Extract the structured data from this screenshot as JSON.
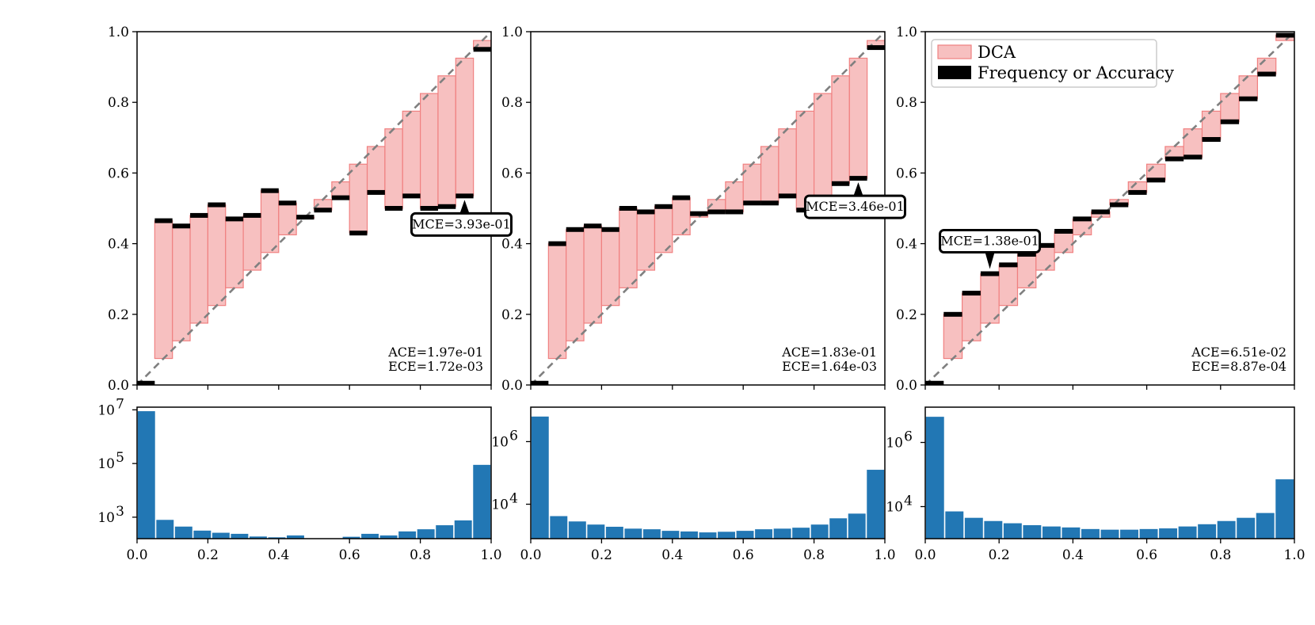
{
  "colors": {
    "gap_fill": "#f7c0c0",
    "gap_edge": "#f08080",
    "accuracy": "#000000",
    "hist": "#2277b4",
    "diagonal": "#808080"
  },
  "legend": {
    "dca_label": "DCA",
    "acc_label": "Frequency or Accuracy",
    "placement": "upper-left of third panel"
  },
  "chart_data": [
    {
      "type": "bar",
      "title": "",
      "xlabel": "",
      "ylabel": "",
      "xlim": [
        0,
        1
      ],
      "ylim": [
        0,
        1
      ],
      "x_ticks": [
        "0.0",
        "0.2",
        "0.4",
        "0.6",
        "0.8",
        "1.0"
      ],
      "y_ticks": [
        "0.0",
        "0.2",
        "0.4",
        "0.6",
        "0.8",
        "1.0"
      ],
      "bin_width": 0.05,
      "confidence": [
        0.0,
        0.075,
        0.125,
        0.175,
        0.225,
        0.275,
        0.325,
        0.375,
        0.425,
        0.475,
        0.525,
        0.575,
        0.625,
        0.675,
        0.725,
        0.775,
        0.825,
        0.875,
        0.925,
        0.975
      ],
      "accuracy": [
        0.005,
        0.465,
        0.45,
        0.48,
        0.51,
        0.47,
        0.48,
        0.55,
        0.515,
        0.475,
        0.495,
        0.53,
        0.43,
        0.545,
        0.5,
        0.535,
        0.5,
        0.505,
        0.535,
        0.95
      ],
      "metrics": {
        "ace": "ACE=1.97e-01",
        "ece": "ECE=1.72e-03"
      },
      "mce": {
        "label": "MCE=3.93e-01",
        "bin": 18
      },
      "hist": {
        "yscale": "log",
        "yticks": [
          3,
          5,
          7
        ],
        "counts_log10": [
          6.95,
          2.9,
          2.65,
          2.5,
          2.42,
          2.38,
          2.28,
          2.25,
          2.32,
          2.15,
          2.12,
          2.27,
          2.38,
          2.32,
          2.47,
          2.55,
          2.7,
          2.88,
          4.95
        ]
      }
    },
    {
      "type": "bar",
      "title": "",
      "xlabel": "",
      "ylabel": "",
      "xlim": [
        0,
        1
      ],
      "ylim": [
        0,
        1
      ],
      "x_ticks": [
        "0.0",
        "0.2",
        "0.4",
        "0.6",
        "0.8",
        "1.0"
      ],
      "y_ticks": [
        "0.0",
        "0.2",
        "0.4",
        "0.6",
        "0.8",
        "1.0"
      ],
      "bin_width": 0.05,
      "confidence": [
        0.0,
        0.075,
        0.125,
        0.175,
        0.225,
        0.275,
        0.325,
        0.375,
        0.425,
        0.475,
        0.525,
        0.575,
        0.625,
        0.675,
        0.725,
        0.775,
        0.825,
        0.875,
        0.925,
        0.975
      ],
      "accuracy": [
        0.005,
        0.4,
        0.44,
        0.45,
        0.44,
        0.5,
        0.49,
        0.505,
        0.53,
        0.485,
        0.49,
        0.49,
        0.515,
        0.515,
        0.535,
        0.495,
        0.505,
        0.57,
        0.585,
        0.955
      ],
      "metrics": {
        "ace": "ACE=1.83e-01",
        "ece": "ECE=1.64e-03"
      },
      "mce": {
        "label": "MCE=3.46e-01",
        "bin": 18
      },
      "hist": {
        "yscale": "log",
        "yticks": [
          4,
          6
        ],
        "counts_log10": [
          6.8,
          3.62,
          3.45,
          3.35,
          3.28,
          3.22,
          3.2,
          3.15,
          3.13,
          3.1,
          3.12,
          3.15,
          3.2,
          3.22,
          3.25,
          3.35,
          3.55,
          3.7,
          5.1
        ]
      }
    },
    {
      "type": "bar",
      "title": "",
      "xlabel": "",
      "ylabel": "",
      "xlim": [
        0,
        1
      ],
      "ylim": [
        0,
        1
      ],
      "x_ticks": [
        "0.0",
        "0.2",
        "0.4",
        "0.6",
        "0.8",
        "1.0"
      ],
      "y_ticks": [
        "0.0",
        "0.2",
        "0.4",
        "0.6",
        "0.8",
        "1.0"
      ],
      "bin_width": 0.05,
      "confidence": [
        0.0,
        0.075,
        0.125,
        0.175,
        0.225,
        0.275,
        0.325,
        0.375,
        0.425,
        0.475,
        0.525,
        0.575,
        0.625,
        0.675,
        0.725,
        0.775,
        0.825,
        0.875,
        0.925,
        0.975
      ],
      "accuracy": [
        0.005,
        0.2,
        0.26,
        0.315,
        0.34,
        0.37,
        0.395,
        0.435,
        0.47,
        0.49,
        0.51,
        0.545,
        0.58,
        0.64,
        0.645,
        0.695,
        0.745,
        0.81,
        0.88,
        0.99
      ],
      "metrics": {
        "ace": "ACE=6.51e-02",
        "ece": "ECE=8.87e-04"
      },
      "mce": {
        "label": "MCE=1.38e-01",
        "bin": 3
      },
      "hist": {
        "yscale": "log",
        "yticks": [
          4,
          6
        ],
        "counts_log10": [
          6.8,
          3.85,
          3.65,
          3.55,
          3.48,
          3.42,
          3.38,
          3.35,
          3.3,
          3.28,
          3.28,
          3.3,
          3.32,
          3.38,
          3.45,
          3.55,
          3.65,
          3.8,
          4.85
        ]
      }
    }
  ]
}
